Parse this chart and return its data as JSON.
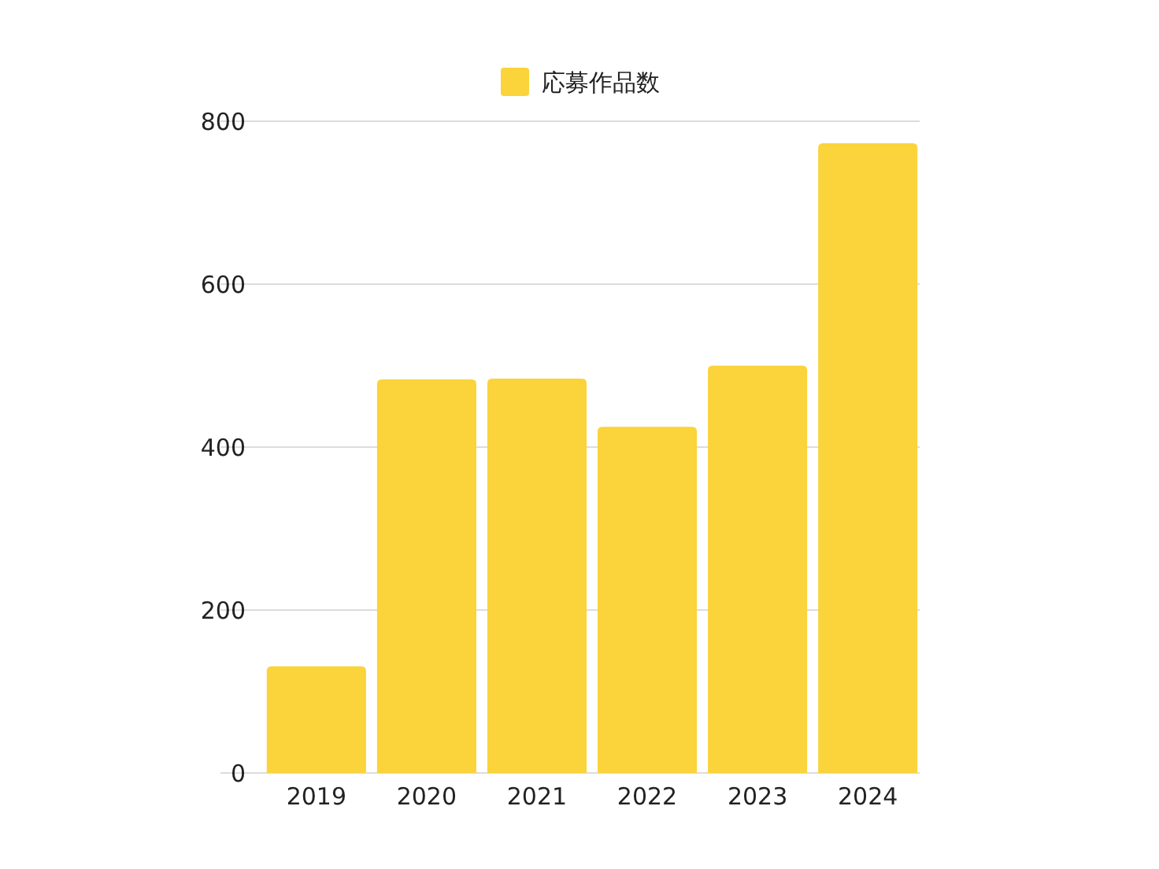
{
  "chart_data": {
    "type": "bar",
    "categories": [
      "2019",
      "2020",
      "2021",
      "2022",
      "2023",
      "2024"
    ],
    "series": [
      {
        "name": "応募作品数",
        "color": "#fbd33a",
        "values": [
          131,
          483,
          484,
          425,
          500,
          773
        ]
      }
    ],
    "ylim": [
      0,
      800
    ],
    "yticks": [
      0,
      200,
      400,
      600,
      800
    ],
    "grid": "y",
    "legend": "top"
  }
}
